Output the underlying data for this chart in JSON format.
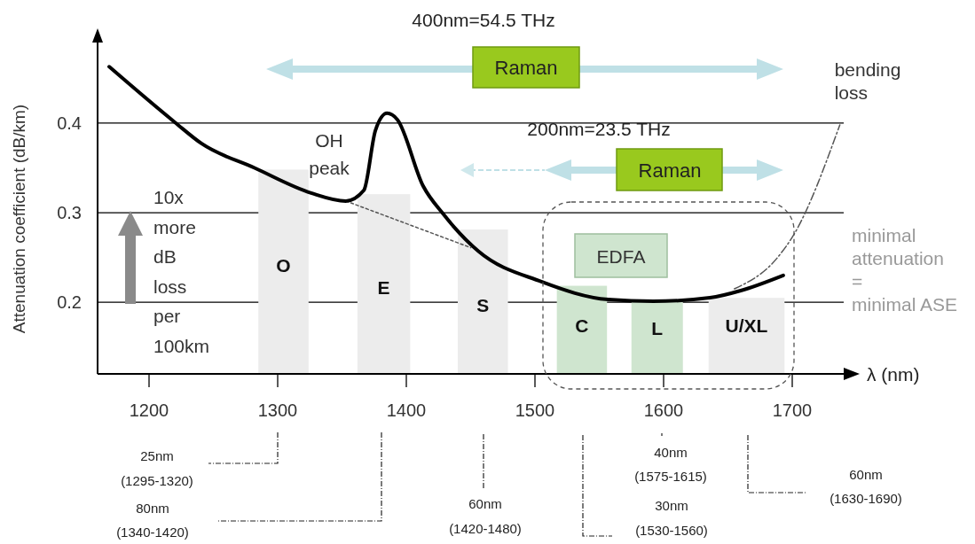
{
  "chart_data": {
    "type": "line",
    "xlabel": "λ (nm)",
    "ylabel": "Attenuation coefficient (dB/km)",
    "xlim": [
      1160,
      1740
    ],
    "ylim": [
      0.12,
      0.49
    ],
    "xticks": [
      1200,
      1300,
      1400,
      1500,
      1600,
      1700
    ],
    "yticks": [
      0.2,
      0.3,
      0.4
    ],
    "grid": "y",
    "series": [
      {
        "color": "#000000",
        "line_style": "solid",
        "x": [
          1169,
          1220,
          1241,
          1282,
          1326,
          1353,
          1367,
          1376,
          1385,
          1393,
          1413,
          1429,
          1456,
          1505,
          1557,
          1592,
          1636,
          1660,
          1693
        ],
        "values": [
          0.463,
          0.401,
          0.377,
          0.35,
          0.322,
          0.313,
          0.325,
          0.392,
          0.411,
          0.404,
          0.33,
          0.298,
          0.257,
          0.223,
          0.203,
          0.201,
          0.205,
          0.213,
          0.23
        ]
      },
      {
        "color": "#555555",
        "line_style": "dotted",
        "x": [
          1353,
          1450
        ],
        "values": [
          0.313,
          0.261
        ]
      },
      {
        "name": "bending loss",
        "color": "#555555",
        "line_style": "dashed",
        "x": [
          1655,
          1688,
          1701,
          1737
        ],
        "values": [
          0.215,
          0.249,
          0.275,
          0.398
        ]
      }
    ],
    "bands": [
      {
        "axis": "x",
        "from": 1285,
        "to": 1324,
        "label": "O",
        "color": "#ececec"
      },
      {
        "axis": "x",
        "from": 1362,
        "to": 1403,
        "label": "E",
        "color": "#ececec"
      },
      {
        "axis": "x",
        "from": 1440,
        "to": 1479,
        "label": "S",
        "color": "#ececec"
      },
      {
        "axis": "x",
        "from": 1517,
        "to": 1556,
        "label": "C",
        "color": "#cfe5cf"
      },
      {
        "axis": "x",
        "from": 1575,
        "to": 1615,
        "label": "L",
        "color": "#cfe5cf"
      },
      {
        "axis": "x",
        "from": 1635,
        "to": 1694,
        "label": "U/XL",
        "color": "#ececec"
      }
    ],
    "annotations": [
      "400nm=54.5 THz",
      "Raman",
      "200nm=23.5 THz",
      "Raman",
      "EDFA",
      "OH\npeak",
      "minimal\nattenuation\n=\nminimal ASE",
      "10x\nmore\ndB\nloss\nper\n100km",
      "25nm\n(1295-1320)",
      "80nm\n(1340-1420)",
      "60nm\n(1420-1480)",
      "40nm\n(1575-1615)",
      "30nm\n(1530-1560)",
      "60nm\n(1630-1690)"
    ]
  }
}
